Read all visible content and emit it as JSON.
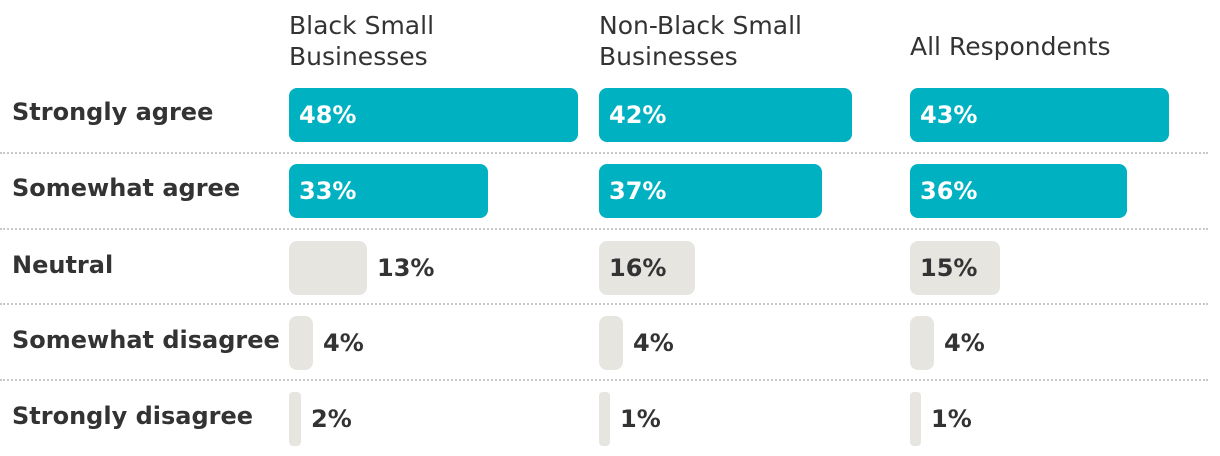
{
  "colors": {
    "agree": "#00b1c1",
    "neutral": "#e6e5e0",
    "text": "#333333",
    "separator": "#c8c8c8"
  },
  "chart_data": {
    "type": "bar",
    "orientation": "horizontal",
    "categories": [
      "Strongly agree",
      "Somewhat agree",
      "Neutral",
      "Somewhat disagree",
      "Strongly disagree"
    ],
    "series": [
      {
        "name": "Black Small Businesses",
        "values": [
          48,
          33,
          13,
          4,
          2
        ],
        "labels": [
          "48%",
          "33%",
          "13%",
          "4%",
          "2%"
        ]
      },
      {
        "name": "Non-Black Small Businesses",
        "values": [
          42,
          37,
          16,
          4,
          1
        ],
        "labels": [
          "42%",
          "37%",
          "16%",
          "4%",
          "1%"
        ]
      },
      {
        "name": "All Respondents",
        "values": [
          43,
          36,
          15,
          4,
          1
        ],
        "labels": [
          "43%",
          "36%",
          "15%",
          "4%",
          "1%"
        ]
      }
    ],
    "unit": "%",
    "xlim": [
      0,
      48
    ],
    "grid": false,
    "legend": "column headers at top"
  }
}
